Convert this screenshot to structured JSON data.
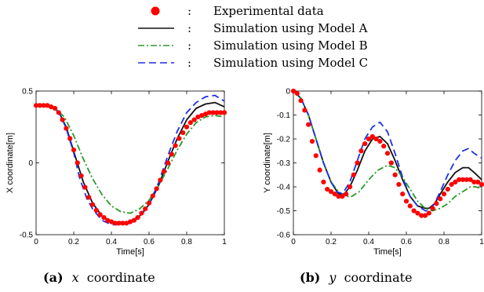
{
  "legend": {
    "separator": ":",
    "entries": [
      {
        "label": "Experimental data",
        "style": "dots",
        "color": "#ff0000"
      },
      {
        "label": "Simulation using Model A",
        "style": "solid",
        "color": "#111111"
      },
      {
        "label": "Simulation using Model B",
        "style": "dashdot",
        "color": "#2a9a2a"
      },
      {
        "label": "Simulation using Model C",
        "style": "dashed",
        "color": "#1f2fe6"
      }
    ]
  },
  "chart_data": [
    {
      "type": "line",
      "caption_tag": "(a)",
      "caption_var": "x",
      "caption_text": "coordinate",
      "xlabel": "Time[s]",
      "ylabel": "X coordinate[m]",
      "xlim": [
        0,
        1
      ],
      "ylim": [
        -0.5,
        0.5
      ],
      "xticks": [
        0,
        0.2,
        0.4,
        0.6,
        0.8,
        1
      ],
      "xtick_labels": [
        "0",
        "0.2",
        "0.4",
        "0.6",
        "0.8",
        "1"
      ],
      "yticks": [
        -0.5,
        0,
        0.5
      ],
      "ytick_labels": [
        "-0.5",
        "0",
        "0.5"
      ],
      "grid": false,
      "series": [
        {
          "name": "Simulation using Model A",
          "style": "solid",
          "color": "#111111",
          "x": [
            0,
            0.05,
            0.1,
            0.13,
            0.16,
            0.2,
            0.25,
            0.3,
            0.35,
            0.4,
            0.45,
            0.5,
            0.55,
            0.6,
            0.65,
            0.7,
            0.75,
            0.8,
            0.85,
            0.9,
            0.95,
            1.0
          ],
          "y": [
            0.4,
            0.4,
            0.38,
            0.33,
            0.25,
            0.08,
            -0.13,
            -0.28,
            -0.37,
            -0.41,
            -0.42,
            -0.41,
            -0.37,
            -0.29,
            -0.16,
            0.01,
            0.17,
            0.3,
            0.38,
            0.41,
            0.42,
            0.39
          ]
        },
        {
          "name": "Simulation using Model B",
          "style": "dashdot",
          "color": "#2a9a2a",
          "x": [
            0,
            0.05,
            0.1,
            0.15,
            0.2,
            0.25,
            0.3,
            0.35,
            0.4,
            0.45,
            0.5,
            0.55,
            0.6,
            0.65,
            0.7,
            0.75,
            0.8,
            0.85,
            0.9,
            0.95,
            1.0
          ],
          "y": [
            0.4,
            0.4,
            0.38,
            0.32,
            0.19,
            0.03,
            -0.11,
            -0.22,
            -0.3,
            -0.34,
            -0.35,
            -0.32,
            -0.26,
            -0.16,
            -0.04,
            0.09,
            0.2,
            0.28,
            0.32,
            0.33,
            0.32
          ]
        },
        {
          "name": "Simulation using Model C",
          "style": "dashed",
          "color": "#1f2fe6",
          "x": [
            0,
            0.05,
            0.1,
            0.13,
            0.16,
            0.2,
            0.23,
            0.27,
            0.3,
            0.35,
            0.4,
            0.45,
            0.5,
            0.55,
            0.6,
            0.65,
            0.7,
            0.75,
            0.8,
            0.85,
            0.9,
            0.95,
            1.0
          ],
          "y": [
            0.4,
            0.4,
            0.38,
            0.33,
            0.24,
            0.07,
            -0.1,
            -0.25,
            -0.32,
            -0.4,
            -0.43,
            -0.43,
            -0.42,
            -0.38,
            -0.29,
            -0.14,
            0.05,
            0.22,
            0.35,
            0.42,
            0.46,
            0.47,
            0.43
          ]
        },
        {
          "name": "Experimental data",
          "style": "dots",
          "color": "#ff0000",
          "x": [
            0,
            0.02,
            0.04,
            0.06,
            0.08,
            0.1,
            0.12,
            0.14,
            0.16,
            0.18,
            0.2,
            0.22,
            0.24,
            0.26,
            0.28,
            0.3,
            0.32,
            0.34,
            0.36,
            0.38,
            0.4,
            0.42,
            0.44,
            0.46,
            0.48,
            0.5,
            0.52,
            0.54,
            0.56,
            0.58,
            0.6,
            0.62,
            0.64,
            0.66,
            0.68,
            0.7,
            0.72,
            0.74,
            0.76,
            0.78,
            0.8,
            0.82,
            0.84,
            0.86,
            0.88,
            0.9,
            0.92,
            0.94,
            0.96,
            0.98,
            1.0
          ],
          "y": [
            0.4,
            0.4,
            0.4,
            0.4,
            0.39,
            0.38,
            0.35,
            0.3,
            0.24,
            0.17,
            0.09,
            0.0,
            -0.09,
            -0.17,
            -0.24,
            -0.29,
            -0.33,
            -0.36,
            -0.38,
            -0.4,
            -0.41,
            -0.42,
            -0.42,
            -0.42,
            -0.42,
            -0.41,
            -0.4,
            -0.38,
            -0.35,
            -0.32,
            -0.28,
            -0.23,
            -0.18,
            -0.12,
            -0.06,
            0.0,
            0.06,
            0.12,
            0.17,
            0.21,
            0.25,
            0.28,
            0.3,
            0.32,
            0.33,
            0.34,
            0.35,
            0.35,
            0.35,
            0.35,
            0.35
          ]
        }
      ]
    },
    {
      "type": "line",
      "caption_tag": "(b)",
      "caption_var": "y",
      "caption_text": "coordinate",
      "xlabel": "Time[s]",
      "ylabel": "Y coordinate[m]",
      "xlim": [
        0,
        1
      ],
      "ylim": [
        -0.6,
        0
      ],
      "xticks": [
        0,
        0.2,
        0.4,
        0.6,
        0.8,
        1
      ],
      "xtick_labels": [
        "0",
        "0.2",
        "0.4",
        "0.6",
        "0.8",
        "1"
      ],
      "yticks": [
        -0.6,
        -0.5,
        -0.4,
        -0.3,
        -0.2,
        -0.1,
        0
      ],
      "ytick_labels": [
        "-0.6",
        "-0.5",
        "-0.4",
        "-0.3",
        "-0.2",
        "-0.1",
        "0"
      ],
      "grid": false,
      "series": [
        {
          "name": "Simulation using Model A",
          "style": "solid",
          "color": "#111111",
          "x": [
            0,
            0.04,
            0.08,
            0.12,
            0.16,
            0.2,
            0.24,
            0.27,
            0.3,
            0.34,
            0.38,
            0.42,
            0.46,
            0.5,
            0.54,
            0.58,
            0.62,
            0.66,
            0.7,
            0.72,
            0.75,
            0.78,
            0.82,
            0.86,
            0.9,
            0.93,
            0.96,
            1.0
          ],
          "y": [
            0,
            -0.03,
            -0.1,
            -0.2,
            -0.3,
            -0.38,
            -0.43,
            -0.43,
            -0.4,
            -0.33,
            -0.25,
            -0.2,
            -0.19,
            -0.22,
            -0.29,
            -0.37,
            -0.44,
            -0.48,
            -0.49,
            -0.49,
            -0.47,
            -0.43,
            -0.38,
            -0.34,
            -0.32,
            -0.32,
            -0.34,
            -0.37
          ]
        },
        {
          "name": "Simulation using Model B",
          "style": "dashdot",
          "color": "#2a9a2a",
          "x": [
            0,
            0.04,
            0.08,
            0.12,
            0.16,
            0.2,
            0.24,
            0.28,
            0.31,
            0.35,
            0.4,
            0.45,
            0.5,
            0.54,
            0.58,
            0.62,
            0.66,
            0.7,
            0.74,
            0.78,
            0.82,
            0.86,
            0.9,
            0.94,
            0.97,
            1.0
          ],
          "y": [
            0,
            -0.03,
            -0.1,
            -0.2,
            -0.3,
            -0.38,
            -0.42,
            -0.44,
            -0.44,
            -0.42,
            -0.37,
            -0.33,
            -0.31,
            -0.32,
            -0.36,
            -0.41,
            -0.46,
            -0.49,
            -0.5,
            -0.49,
            -0.47,
            -0.44,
            -0.42,
            -0.4,
            -0.4,
            -0.41
          ]
        },
        {
          "name": "Simulation using Model C",
          "style": "dashed",
          "color": "#1f2fe6",
          "x": [
            0,
            0.04,
            0.08,
            0.12,
            0.16,
            0.2,
            0.23,
            0.26,
            0.3,
            0.34,
            0.38,
            0.42,
            0.46,
            0.5,
            0.54,
            0.58,
            0.62,
            0.66,
            0.7,
            0.72,
            0.75,
            0.78,
            0.82,
            0.86,
            0.9,
            0.93,
            0.96,
            1.0
          ],
          "y": [
            0,
            -0.03,
            -0.1,
            -0.2,
            -0.3,
            -0.38,
            -0.42,
            -0.43,
            -0.38,
            -0.29,
            -0.2,
            -0.15,
            -0.13,
            -0.17,
            -0.26,
            -0.36,
            -0.44,
            -0.48,
            -0.5,
            -0.5,
            -0.47,
            -0.42,
            -0.35,
            -0.29,
            -0.25,
            -0.24,
            -0.26,
            -0.28
          ]
        },
        {
          "name": "Experimental data",
          "style": "dots",
          "color": "#ff0000",
          "x": [
            0,
            0.02,
            0.04,
            0.06,
            0.08,
            0.1,
            0.12,
            0.14,
            0.16,
            0.18,
            0.2,
            0.22,
            0.24,
            0.26,
            0.28,
            0.3,
            0.32,
            0.34,
            0.36,
            0.38,
            0.4,
            0.42,
            0.44,
            0.46,
            0.48,
            0.5,
            0.52,
            0.54,
            0.56,
            0.58,
            0.6,
            0.62,
            0.64,
            0.66,
            0.68,
            0.7,
            0.72,
            0.74,
            0.76,
            0.78,
            0.8,
            0.82,
            0.84,
            0.86,
            0.88,
            0.9,
            0.92,
            0.94,
            0.96,
            0.98,
            1.0
          ],
          "y": [
            0,
            -0.01,
            -0.04,
            -0.08,
            -0.14,
            -0.21,
            -0.27,
            -0.33,
            -0.38,
            -0.41,
            -0.42,
            -0.43,
            -0.44,
            -0.44,
            -0.43,
            -0.4,
            -0.35,
            -0.3,
            -0.25,
            -0.22,
            -0.2,
            -0.19,
            -0.2,
            -0.21,
            -0.23,
            -0.26,
            -0.3,
            -0.35,
            -0.39,
            -0.43,
            -0.46,
            -0.48,
            -0.5,
            -0.51,
            -0.52,
            -0.52,
            -0.51,
            -0.49,
            -0.47,
            -0.45,
            -0.43,
            -0.41,
            -0.39,
            -0.38,
            -0.37,
            -0.37,
            -0.37,
            -0.37,
            -0.38,
            -0.38,
            -0.39
          ]
        }
      ]
    }
  ]
}
